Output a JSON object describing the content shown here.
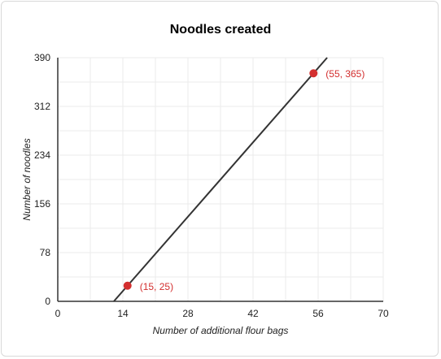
{
  "chart_data": {
    "type": "line",
    "title": "Noodles created",
    "xlabel": "Number of additional flour bags",
    "ylabel": "Number of noodles",
    "xlim": [
      0,
      70
    ],
    "ylim": [
      0,
      390
    ],
    "x_ticks": [
      0,
      14,
      28,
      42,
      56,
      70
    ],
    "y_ticks": [
      0,
      78,
      156,
      234,
      312,
      390
    ],
    "x_minor_step": 7,
    "y_minor_step": 39,
    "grid": true,
    "line": {
      "slope": 8.5,
      "intercept": -102.5,
      "x_range": [
        12.06,
        57.94
      ],
      "color": "#333333"
    },
    "points": [
      {
        "x": 15,
        "y": 25,
        "label": "(15, 25)"
      },
      {
        "x": 55,
        "y": 365,
        "label": "(55, 365)"
      }
    ],
    "point_color": "#d32f2f",
    "grid_color": "#ebebeb",
    "axis_color": "#333333"
  }
}
